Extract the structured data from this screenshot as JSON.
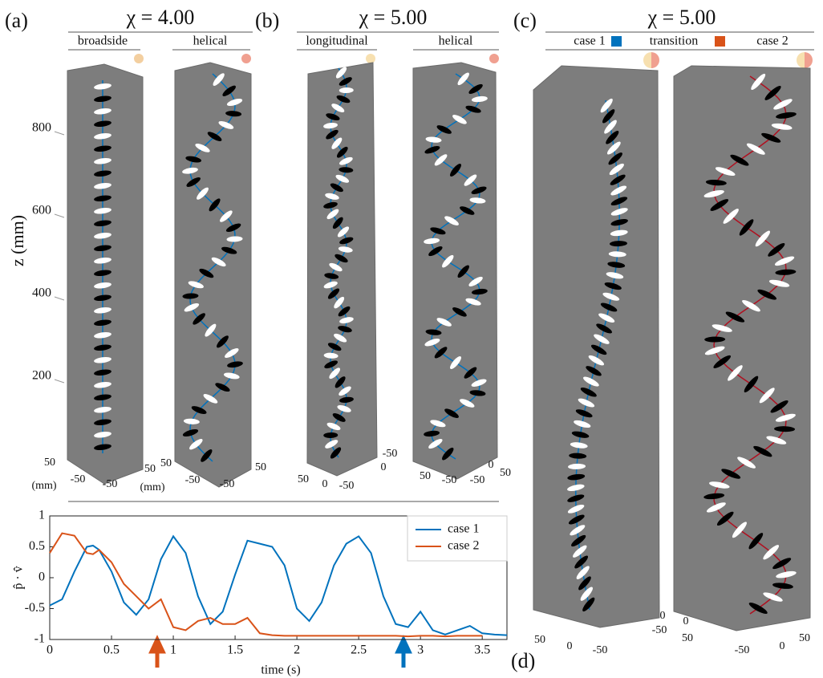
{
  "panels": [
    {
      "label": "(a)",
      "title": "χ = 4.00",
      "subpanels": [
        {
          "label": "broadside",
          "base_ticks": [
            50,
            -50,
            -50,
            50
          ],
          "base_units": [
            "(mm)",
            "(mm)"
          ]
        },
        {
          "label": "helical",
          "base_ticks": [
            50,
            -50,
            -50,
            50
          ]
        }
      ]
    },
    {
      "label": "(b)",
      "title": "χ = 5.00",
      "subpanels": [
        {
          "label": "longitudinal",
          "base_ticks": [
            50,
            0,
            -50,
            -50,
            0
          ]
        },
        {
          "label": "helical",
          "base_ticks": [
            50,
            -50,
            -50,
            0,
            50
          ]
        }
      ]
    },
    {
      "label": "(c)",
      "title": "χ = 5.00",
      "legend": [
        {
          "name": "case 1",
          "color": "#0072bd"
        },
        {
          "name": "transition",
          "color": "#d95319"
        },
        {
          "name": "case 2"
        }
      ],
      "subpanels": [
        {
          "base_ticks": [
            50,
            0,
            -50,
            -50,
            0
          ]
        },
        {
          "base_ticks": [
            0,
            50,
            -50,
            0,
            50
          ]
        }
      ]
    }
  ],
  "z_axis": {
    "label": "z (mm)",
    "ticks": [
      200,
      400,
      600,
      800
    ],
    "lim": [
      0,
      900
    ]
  },
  "chart_data": {
    "type": "line",
    "label": "(d)",
    "xlabel": "time (s)",
    "ylabel": "p̂ · v̂",
    "x": [
      0,
      0.1,
      0.2,
      0.3,
      0.35,
      0.4,
      0.5,
      0.6,
      0.7,
      0.8,
      0.9,
      1.0,
      1.1,
      1.2,
      1.3,
      1.4,
      1.5,
      1.6,
      1.7,
      1.8,
      1.9,
      2.0,
      2.1,
      2.2,
      2.3,
      2.4,
      2.5,
      2.6,
      2.7,
      2.8,
      2.9,
      3.0,
      3.1,
      3.2,
      3.3,
      3.4,
      3.5,
      3.6,
      3.7
    ],
    "series": [
      {
        "name": "case 1",
        "color": "#0072bd",
        "values": [
          -0.45,
          -0.35,
          0.1,
          0.5,
          0.52,
          0.45,
          0.1,
          -0.4,
          -0.6,
          -0.35,
          0.3,
          0.67,
          0.4,
          -0.3,
          -0.75,
          -0.55,
          0.05,
          0.6,
          0.55,
          0.5,
          0.2,
          -0.5,
          -0.7,
          -0.4,
          0.2,
          0.55,
          0.67,
          0.4,
          -0.3,
          -0.75,
          -0.8,
          -0.55,
          -0.85,
          -0.92,
          -0.85,
          -0.78,
          -0.9,
          -0.92,
          -0.93
        ]
      },
      {
        "name": "case 2",
        "color": "#d95319",
        "values": [
          0.4,
          0.72,
          0.68,
          0.4,
          0.38,
          0.45,
          0.25,
          -0.1,
          -0.3,
          -0.5,
          -0.35,
          -0.8,
          -0.85,
          -0.7,
          -0.65,
          -0.75,
          -0.75,
          -0.65,
          -0.9,
          -0.93,
          -0.94,
          -0.94,
          -0.94,
          -0.94,
          -0.94,
          -0.94,
          -0.94,
          -0.94,
          -0.94,
          -0.94,
          -0.95,
          -0.94,
          -0.94,
          -0.95,
          -0.94,
          -0.94,
          -0.94,
          null,
          null
        ]
      }
    ],
    "xlim": [
      0,
      3.7
    ],
    "ylim": [
      -1,
      1
    ],
    "xticks": [
      0,
      0.5,
      1,
      1.5,
      2,
      2.5,
      3,
      3.5
    ],
    "yticks": [
      -1,
      -0.5,
      0,
      0.5,
      1
    ],
    "legend": "upper right"
  }
}
